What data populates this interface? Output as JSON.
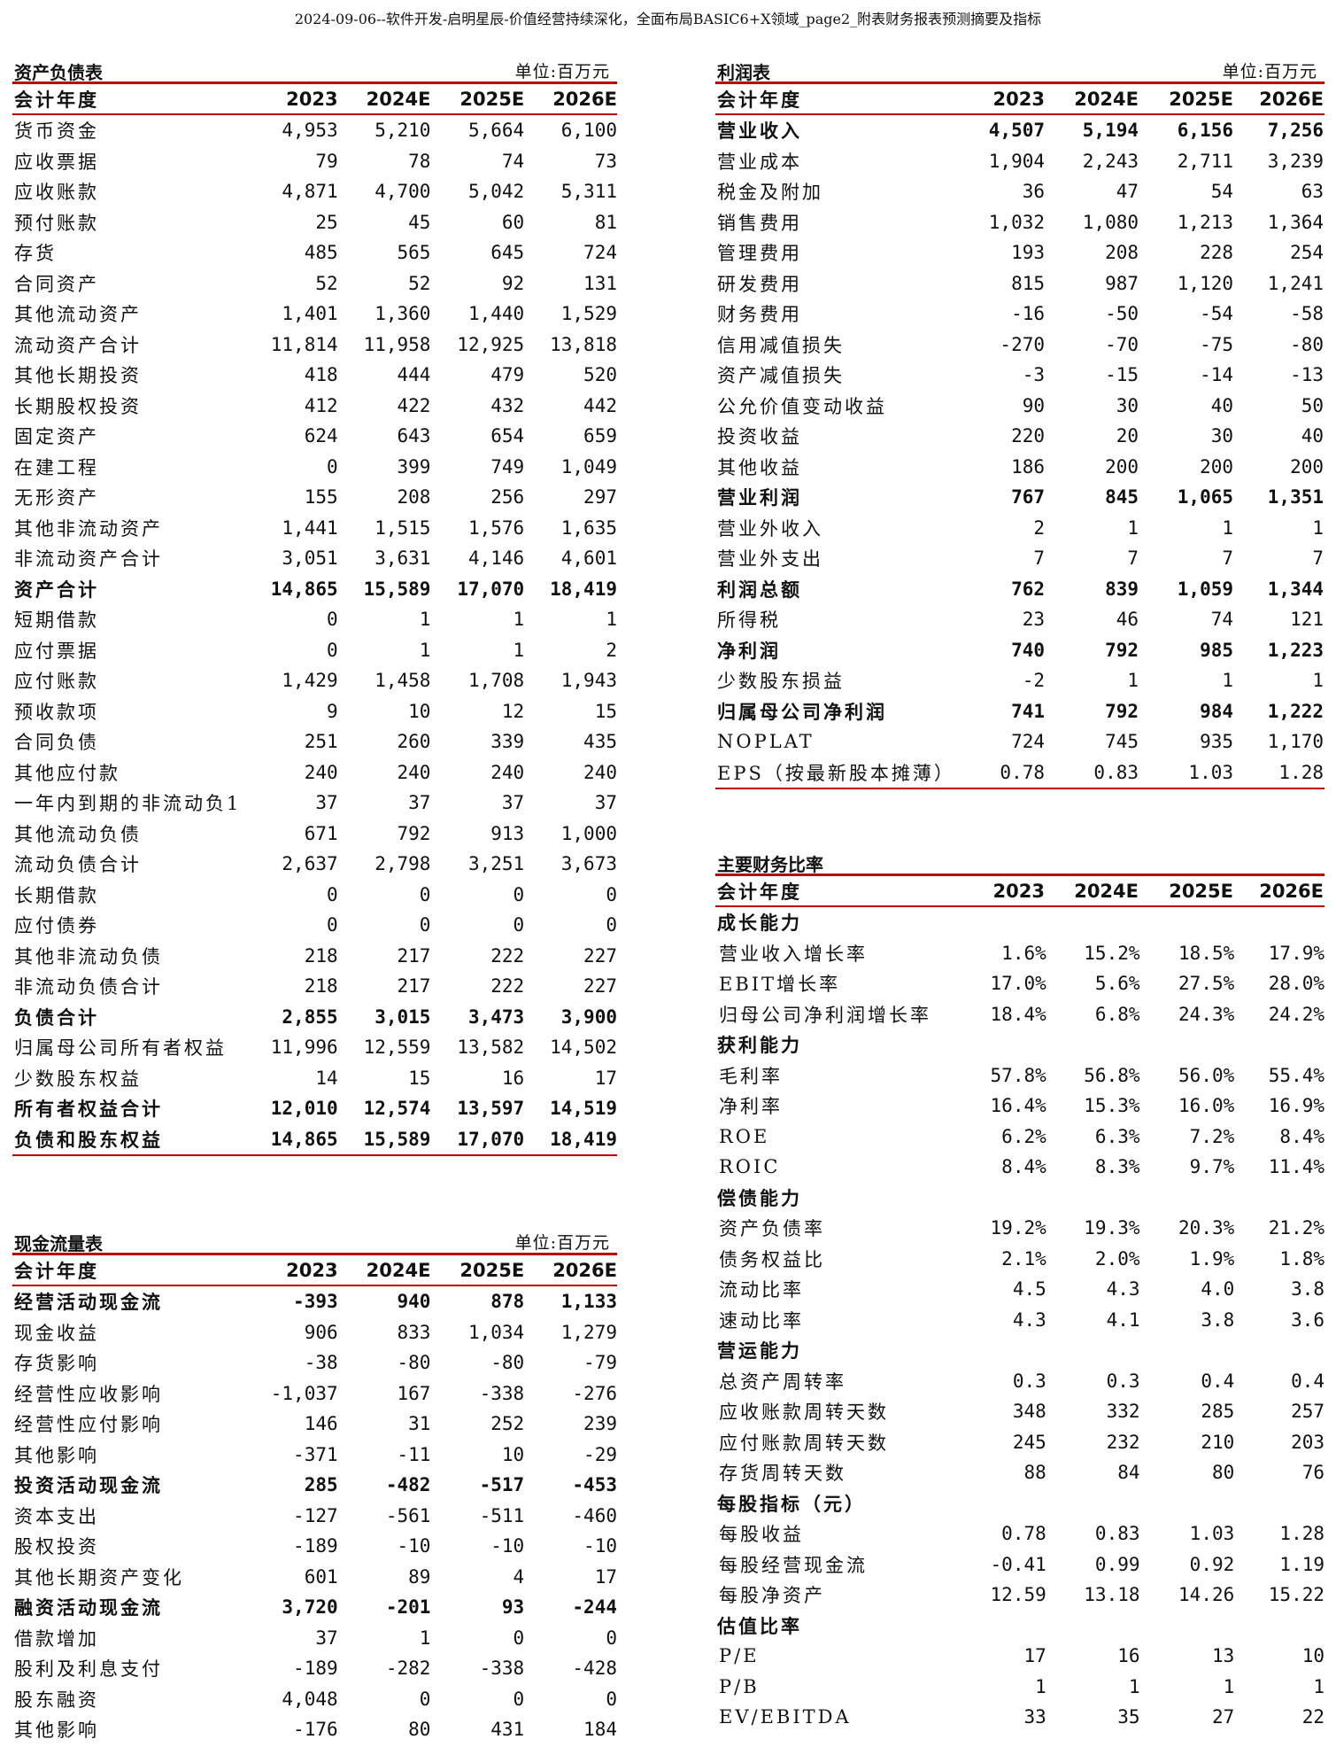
{
  "doc_title": "2024-09-06--软件开发-启明星辰-价值经营持续深化，全面布局BASIC6+X领域_page2_附表财务报表预测摘要及指标",
  "balance_sheet": {
    "title": "资产负债表",
    "unit": "单位:百万元",
    "header": {
      "label": "会计年度",
      "years": [
        "2023",
        "2024E",
        "2025E",
        "2026E"
      ]
    },
    "rows": [
      {
        "label": "货币资金",
        "values": [
          "4,953",
          "5,210",
          "5,664",
          "6,100"
        ],
        "bold": false
      },
      {
        "label": "应收票据",
        "values": [
          "79",
          "78",
          "74",
          "73"
        ],
        "bold": false
      },
      {
        "label": "应收账款",
        "values": [
          "4,871",
          "4,700",
          "5,042",
          "5,311"
        ],
        "bold": false
      },
      {
        "label": "预付账款",
        "values": [
          "25",
          "45",
          "60",
          "81"
        ],
        "bold": false
      },
      {
        "label": "存货",
        "values": [
          "485",
          "565",
          "645",
          "724"
        ],
        "bold": false
      },
      {
        "label": "合同资产",
        "values": [
          "52",
          "52",
          "92",
          "131"
        ],
        "bold": false
      },
      {
        "label": "其他流动资产",
        "values": [
          "1,401",
          "1,360",
          "1,440",
          "1,529"
        ],
        "bold": false
      },
      {
        "label": "流动资产合计",
        "values": [
          "11,814",
          "11,958",
          "12,925",
          "13,818"
        ],
        "bold": false
      },
      {
        "label": "其他长期投资",
        "values": [
          "418",
          "444",
          "479",
          "520"
        ],
        "bold": false
      },
      {
        "label": "长期股权投资",
        "values": [
          "412",
          "422",
          "432",
          "442"
        ],
        "bold": false
      },
      {
        "label": "固定资产",
        "values": [
          "624",
          "643",
          "654",
          "659"
        ],
        "bold": false
      },
      {
        "label": "在建工程",
        "values": [
          "0",
          "399",
          "749",
          "1,049"
        ],
        "bold": false
      },
      {
        "label": "无形资产",
        "values": [
          "155",
          "208",
          "256",
          "297"
        ],
        "bold": false
      },
      {
        "label": "其他非流动资产",
        "values": [
          "1,441",
          "1,515",
          "1,576",
          "1,635"
        ],
        "bold": false
      },
      {
        "label": "非流动资产合计",
        "values": [
          "3,051",
          "3,631",
          "4,146",
          "4,601"
        ],
        "bold": false
      },
      {
        "label": "资产合计",
        "values": [
          "14,865",
          "15,589",
          "17,070",
          "18,419"
        ],
        "bold": true
      },
      {
        "label": "短期借款",
        "values": [
          "0",
          "1",
          "1",
          "1"
        ],
        "bold": false
      },
      {
        "label": "应付票据",
        "values": [
          "0",
          "1",
          "1",
          "2"
        ],
        "bold": false
      },
      {
        "label": "应付账款",
        "values": [
          "1,429",
          "1,458",
          "1,708",
          "1,943"
        ],
        "bold": false
      },
      {
        "label": "预收款项",
        "values": [
          "9",
          "10",
          "12",
          "15"
        ],
        "bold": false
      },
      {
        "label": "合同负债",
        "values": [
          "251",
          "260",
          "339",
          "435"
        ],
        "bold": false
      },
      {
        "label": "其他应付款",
        "values": [
          "240",
          "240",
          "240",
          "240"
        ],
        "bold": false
      },
      {
        "label": "一年内到期的非流动负1",
        "values": [
          "37",
          "37",
          "37",
          "37"
        ],
        "bold": false
      },
      {
        "label": "其他流动负债",
        "values": [
          "671",
          "792",
          "913",
          "1,000"
        ],
        "bold": false
      },
      {
        "label": "流动负债合计",
        "values": [
          "2,637",
          "2,798",
          "3,251",
          "3,673"
        ],
        "bold": false
      },
      {
        "label": "长期借款",
        "values": [
          "0",
          "0",
          "0",
          "0"
        ],
        "bold": false
      },
      {
        "label": "应付债券",
        "values": [
          "0",
          "0",
          "0",
          "0"
        ],
        "bold": false
      },
      {
        "label": "其他非流动负债",
        "values": [
          "218",
          "217",
          "222",
          "227"
        ],
        "bold": false
      },
      {
        "label": "非流动负债合计",
        "values": [
          "218",
          "217",
          "222",
          "227"
        ],
        "bold": false
      },
      {
        "label": "负债合计",
        "values": [
          "2,855",
          "3,015",
          "3,473",
          "3,900"
        ],
        "bold": true
      },
      {
        "label": "归属母公司所有者权益",
        "values": [
          "11,996",
          "12,559",
          "13,582",
          "14,502"
        ],
        "bold": false
      },
      {
        "label": "少数股东权益",
        "values": [
          "14",
          "15",
          "16",
          "17"
        ],
        "bold": false
      },
      {
        "label": "所有者权益合计",
        "values": [
          "12,010",
          "12,574",
          "13,597",
          "14,519"
        ],
        "bold": true
      },
      {
        "label": "负债和股东权益",
        "values": [
          "14,865",
          "15,589",
          "17,070",
          "18,419"
        ],
        "bold": true
      }
    ]
  },
  "income_statement": {
    "title": "利润表",
    "unit": "单位:百万元",
    "header": {
      "label": "会计年度",
      "years": [
        "2023",
        "2024E",
        "2025E",
        "2026E"
      ]
    },
    "rows": [
      {
        "label": "营业收入",
        "values": [
          "4,507",
          "5,194",
          "6,156",
          "7,256"
        ],
        "bold": true
      },
      {
        "label": "营业成本",
        "values": [
          "1,904",
          "2,243",
          "2,711",
          "3,239"
        ],
        "bold": false
      },
      {
        "label": "税金及附加",
        "values": [
          "36",
          "47",
          "54",
          "63"
        ],
        "bold": false
      },
      {
        "label": "销售费用",
        "values": [
          "1,032",
          "1,080",
          "1,213",
          "1,364"
        ],
        "bold": false
      },
      {
        "label": "管理费用",
        "values": [
          "193",
          "208",
          "228",
          "254"
        ],
        "bold": false
      },
      {
        "label": "研发费用",
        "values": [
          "815",
          "987",
          "1,120",
          "1,241"
        ],
        "bold": false
      },
      {
        "label": "财务费用",
        "values": [
          "-16",
          "-50",
          "-54",
          "-58"
        ],
        "bold": false
      },
      {
        "label": "信用减值损失",
        "values": [
          "-270",
          "-70",
          "-75",
          "-80"
        ],
        "bold": false
      },
      {
        "label": "资产减值损失",
        "values": [
          "-3",
          "-15",
          "-14",
          "-13"
        ],
        "bold": false
      },
      {
        "label": "公允价值变动收益",
        "values": [
          "90",
          "30",
          "40",
          "50"
        ],
        "bold": false
      },
      {
        "label": "投资收益",
        "values": [
          "220",
          "20",
          "30",
          "40"
        ],
        "bold": false
      },
      {
        "label": "其他收益",
        "values": [
          "186",
          "200",
          "200",
          "200"
        ],
        "bold": false
      },
      {
        "label": "营业利润",
        "values": [
          "767",
          "845",
          "1,065",
          "1,351"
        ],
        "bold": true
      },
      {
        "label": "营业外收入",
        "values": [
          "2",
          "1",
          "1",
          "1"
        ],
        "bold": false
      },
      {
        "label": "营业外支出",
        "values": [
          "7",
          "7",
          "7",
          "7"
        ],
        "bold": false
      },
      {
        "label": "利润总额",
        "values": [
          "762",
          "839",
          "1,059",
          "1,344"
        ],
        "bold": true
      },
      {
        "label": "所得税",
        "values": [
          "23",
          "46",
          "74",
          "121"
        ],
        "bold": false
      },
      {
        "label": "净利润",
        "values": [
          "740",
          "792",
          "985",
          "1,223"
        ],
        "bold": true
      },
      {
        "label": "少数股东损益",
        "values": [
          "-2",
          "1",
          "1",
          "1"
        ],
        "bold": false
      },
      {
        "label": "归属母公司净利润",
        "values": [
          "741",
          "792",
          "984",
          "1,222"
        ],
        "bold": true
      },
      {
        "label": "NOPLAT",
        "values": [
          "724",
          "745",
          "935",
          "1,170"
        ],
        "bold": false
      },
      {
        "label": "EPS（按最新股本摊薄）",
        "values": [
          "0.78",
          "0.83",
          "1.03",
          "1.28"
        ],
        "bold": false
      }
    ]
  },
  "cash_flow": {
    "title": "现金流量表",
    "unit": "单位:百万元",
    "header": {
      "label": "会计年度",
      "years": [
        "2023",
        "2024E",
        "2025E",
        "2026E"
      ]
    },
    "rows": [
      {
        "label": "经营活动现金流",
        "values": [
          "-393",
          "940",
          "878",
          "1,133"
        ],
        "bold": true
      },
      {
        "label": "现金收益",
        "values": [
          "906",
          "833",
          "1,034",
          "1,279"
        ],
        "bold": false
      },
      {
        "label": "存货影响",
        "values": [
          "-38",
          "-80",
          "-80",
          "-79"
        ],
        "bold": false
      },
      {
        "label": "经营性应收影响",
        "values": [
          "-1,037",
          "167",
          "-338",
          "-276"
        ],
        "bold": false
      },
      {
        "label": "经营性应付影响",
        "values": [
          "146",
          "31",
          "252",
          "239"
        ],
        "bold": false
      },
      {
        "label": "其他影响",
        "values": [
          "-371",
          "-11",
          "10",
          "-29"
        ],
        "bold": false
      },
      {
        "label": "投资活动现金流",
        "values": [
          "285",
          "-482",
          "-517",
          "-453"
        ],
        "bold": true
      },
      {
        "label": "资本支出",
        "values": [
          "-127",
          "-561",
          "-511",
          "-460"
        ],
        "bold": false
      },
      {
        "label": "股权投资",
        "values": [
          "-189",
          "-10",
          "-10",
          "-10"
        ],
        "bold": false
      },
      {
        "label": "其他长期资产变化",
        "values": [
          "601",
          "89",
          "4",
          "17"
        ],
        "bold": false
      },
      {
        "label": "融资活动现金流",
        "values": [
          "3,720",
          "-201",
          "93",
          "-244"
        ],
        "bold": true
      },
      {
        "label": "借款增加",
        "values": [
          "37",
          "1",
          "0",
          "0"
        ],
        "bold": false
      },
      {
        "label": "股利及利息支付",
        "values": [
          "-189",
          "-282",
          "-338",
          "-428"
        ],
        "bold": false
      },
      {
        "label": "股东融资",
        "values": [
          "4,048",
          "0",
          "0",
          "0"
        ],
        "bold": false
      },
      {
        "label": "其他影响",
        "values": [
          "-176",
          "80",
          "431",
          "184"
        ],
        "bold": false
      }
    ]
  },
  "financial_ratios": {
    "title": "主要财务比率",
    "header": {
      "label": "会计年度",
      "years": [
        "2023",
        "2024E",
        "2025E",
        "2026E"
      ]
    },
    "rows": [
      {
        "label": "成长能力",
        "values": [
          "",
          "",
          "",
          ""
        ],
        "section": true
      },
      {
        "label": "营业收入增长率",
        "values": [
          "1.6%",
          "15.2%",
          "18.5%",
          "17.9%"
        ]
      },
      {
        "label": "EBIT增长率",
        "values": [
          "17.0%",
          "5.6%",
          "27.5%",
          "28.0%"
        ]
      },
      {
        "label": "归母公司净利润增长率",
        "values": [
          "18.4%",
          "6.8%",
          "24.3%",
          "24.2%"
        ]
      },
      {
        "label": "获利能力",
        "values": [
          "",
          "",
          "",
          ""
        ],
        "section": true
      },
      {
        "label": "毛利率",
        "values": [
          "57.8%",
          "56.8%",
          "56.0%",
          "55.4%"
        ]
      },
      {
        "label": "净利率",
        "values": [
          "16.4%",
          "15.3%",
          "16.0%",
          "16.9%"
        ]
      },
      {
        "label": "ROE",
        "values": [
          "6.2%",
          "6.3%",
          "7.2%",
          "8.4%"
        ]
      },
      {
        "label": "ROIC",
        "values": [
          "8.4%",
          "8.3%",
          "9.7%",
          "11.4%"
        ]
      },
      {
        "label": "偿债能力",
        "values": [
          "",
          "",
          "",
          ""
        ],
        "section": true
      },
      {
        "label": "资产负债率",
        "values": [
          "19.2%",
          "19.3%",
          "20.3%",
          "21.2%"
        ]
      },
      {
        "label": "债务权益比",
        "values": [
          "2.1%",
          "2.0%",
          "1.9%",
          "1.8%"
        ]
      },
      {
        "label": "流动比率",
        "values": [
          "4.5",
          "4.3",
          "4.0",
          "3.8"
        ]
      },
      {
        "label": "速动比率",
        "values": [
          "4.3",
          "4.1",
          "3.8",
          "3.6"
        ]
      },
      {
        "label": "营运能力",
        "values": [
          "",
          "",
          "",
          ""
        ],
        "section": true
      },
      {
        "label": "总资产周转率",
        "values": [
          "0.3",
          "0.3",
          "0.4",
          "0.4"
        ]
      },
      {
        "label": "应收账款周转天数",
        "values": [
          "348",
          "332",
          "285",
          "257"
        ]
      },
      {
        "label": "应付账款周转天数",
        "values": [
          "245",
          "232",
          "210",
          "203"
        ]
      },
      {
        "label": "存货周转天数",
        "values": [
          "88",
          "84",
          "80",
          "76"
        ]
      },
      {
        "label": "每股指标（元）",
        "values": [
          "",
          "",
          "",
          ""
        ],
        "section": true
      },
      {
        "label": "每股收益",
        "values": [
          "0.78",
          "0.83",
          "1.03",
          "1.28"
        ]
      },
      {
        "label": "每股经营现金流",
        "values": [
          "-0.41",
          "0.99",
          "0.92",
          "1.19"
        ]
      },
      {
        "label": "每股净资产",
        "values": [
          "12.59",
          "13.18",
          "14.26",
          "15.22"
        ]
      },
      {
        "label": "估值比率",
        "values": [
          "",
          "",
          "",
          ""
        ],
        "section": true
      },
      {
        "label": "P/E",
        "values": [
          "17",
          "16",
          "13",
          "10"
        ]
      },
      {
        "label": "P/B",
        "values": [
          "1",
          "1",
          "1",
          "1"
        ]
      },
      {
        "label": "EV/EBITDA",
        "values": [
          "33",
          "35",
          "27",
          "22"
        ]
      }
    ]
  }
}
